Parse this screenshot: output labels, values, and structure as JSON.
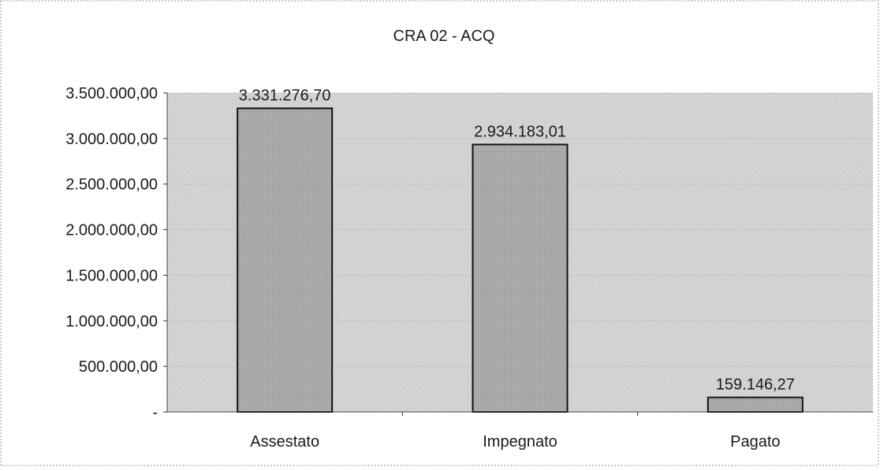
{
  "chart_data": {
    "type": "bar",
    "title": "CRA 02 - ACQ",
    "categories": [
      "Assestato",
      "Impegnato",
      "Pagato"
    ],
    "values": [
      3331276.7,
      2934183.01,
      159146.27
    ],
    "data_labels": [
      "3.331.276,70",
      "2.934.183,01",
      "159.146,27"
    ],
    "ylim": [
      0,
      3500000
    ],
    "yticks": [
      0,
      500000,
      1000000,
      1500000,
      2000000,
      2500000,
      3000000,
      3500000
    ],
    "ytick_labels": [
      "-",
      "500.000,00",
      "1.000.000,00",
      "1.500.000,00",
      "2.000.000,00",
      "2.500.000,00",
      "3.000.000,00",
      "3.500.000,00"
    ],
    "xlabel": "",
    "ylabel": "",
    "legend": "none",
    "grid": true,
    "colors": {
      "bar_fill": "#a9a9a9",
      "bar_stroke": "#111111",
      "plot_background": "#cfcfcf",
      "gridline": "#ababab"
    }
  }
}
